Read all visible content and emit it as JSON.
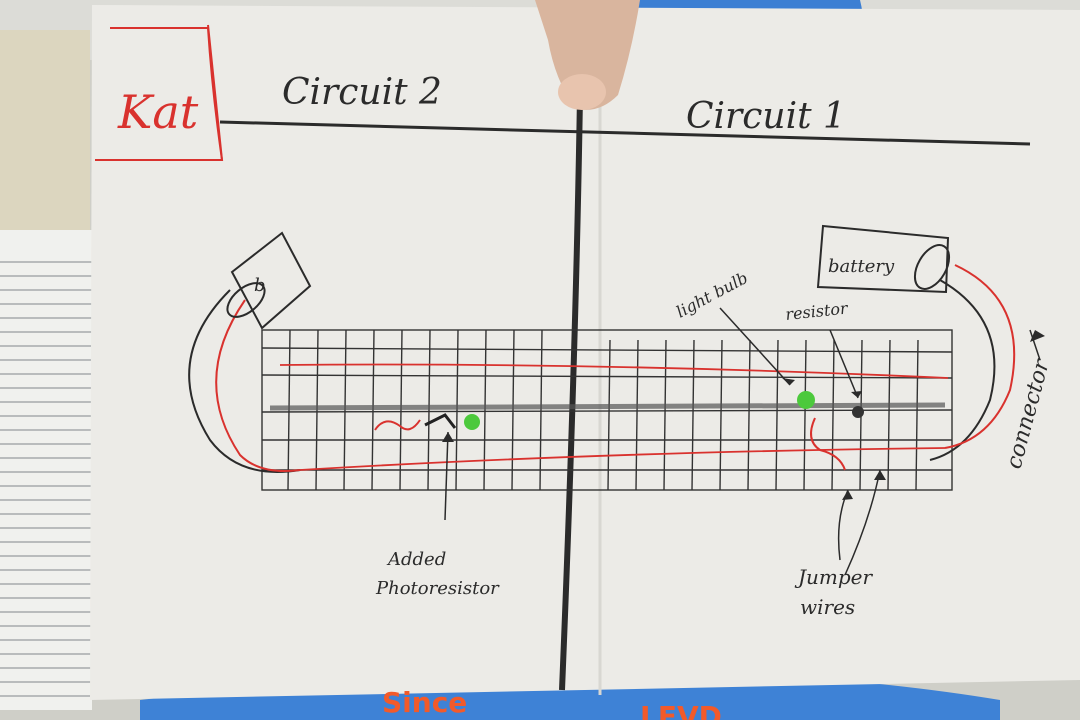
{
  "photo": {
    "name_label": "Kat",
    "left_title": "Circuit 2",
    "right_title": "Circuit 1",
    "labels": {
      "battery_left": "b",
      "battery_right": "battery",
      "light_bulb": "light bulb",
      "resistor": "resistor",
      "connector": "connector",
      "photoresistor_line1": "Added",
      "photoresistor_line2": "Photoresistor",
      "jumper_line1": "Jumper",
      "jumper_line2": "wires"
    },
    "shirt_text_1": "Since",
    "shirt_text_2": "LEVD",
    "colors": {
      "paper": "#ecebe7",
      "ink": "#2b2b2b",
      "red_ink": "#d9322e",
      "green": "#4cc93c",
      "shirt": "#3e82d6",
      "shirt_text": "#f25a2a"
    }
  }
}
